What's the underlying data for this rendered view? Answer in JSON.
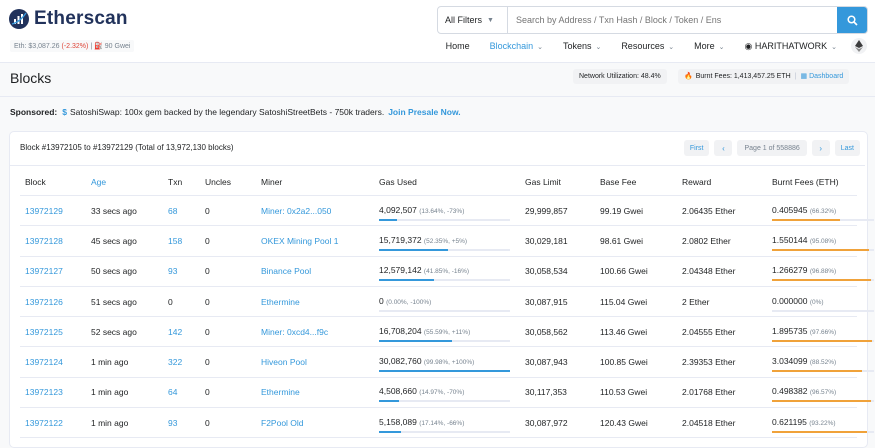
{
  "header": {
    "logo_text": "Etherscan",
    "price_label": "Eth:",
    "price_value": "$3,087.26",
    "price_change": "(-2.32%)",
    "gas_separator": "|",
    "gas_icon": "gas-pump-icon",
    "gas_value": "90 Gwei",
    "search": {
      "filter_label": "All Filters",
      "placeholder": "Search by Address / Txn Hash / Block / Token / Ens",
      "button_icon": "search-icon"
    },
    "nav": {
      "home": "Home",
      "blockchain": "Blockchain",
      "tokens": "Tokens",
      "resources": "Resources",
      "more": "More",
      "user": "HARITHATWORK",
      "network_icon": "ethereum-icon"
    }
  },
  "page": {
    "title": "Blocks",
    "network_utilization": "Network Utilization: 48.4%",
    "burnt_fees": "Burnt Fees: 1,413,457.25 ETH",
    "dashboard": "Dashboard"
  },
  "sponsored": {
    "label": "Sponsored:",
    "name": "SatoshiSwap",
    "text": ": 100x gem backed by the legendary SatoshiStreetBets - 750k traders.",
    "link": "Join Presale Now."
  },
  "card": {
    "summary": "Block #13972105 to #13972129 (Total of 13,972,130 blocks)",
    "pager": {
      "first": "First",
      "prev": "‹",
      "current": "Page 1 of 558886",
      "next": "›",
      "last": "Last"
    }
  },
  "table": {
    "headers": {
      "block": "Block",
      "age": "Age",
      "txn": "Txn",
      "uncles": "Uncles",
      "miner": "Miner",
      "gas_used": "Gas Used",
      "gas_limit": "Gas Limit",
      "base_fee": "Base Fee",
      "reward": "Reward",
      "burnt_fees": "Burnt Fees (ETH)"
    },
    "rows": [
      {
        "block": "13972129",
        "age": "33 secs ago",
        "txn": "68",
        "uncles": "0",
        "miner": "Miner: 0x2a2...050",
        "gas_used": "4,092,507",
        "gas_pct": "(13.64%, -73%)",
        "gas_fill": 0.1364,
        "gas_limit": "29,999,857",
        "base_fee": "99.19 Gwei",
        "reward": "2.06435 Ether",
        "burnt": "0.405945",
        "burnt_pct": "(66.32%)",
        "burnt_fill": 0.6632
      },
      {
        "block": "13972128",
        "age": "45 secs ago",
        "txn": "158",
        "uncles": "0",
        "miner": "OKEX Mining Pool 1",
        "gas_used": "15,719,372",
        "gas_pct": "(52.35%, +5%)",
        "gas_fill": 0.5235,
        "gas_limit": "30,029,181",
        "base_fee": "98.61 Gwei",
        "reward": "2.0802 Ether",
        "burnt": "1.550144",
        "burnt_pct": "(95.08%)",
        "burnt_fill": 0.9508
      },
      {
        "block": "13972127",
        "age": "50 secs ago",
        "txn": "93",
        "uncles": "0",
        "miner": "Binance Pool",
        "gas_used": "12,579,142",
        "gas_pct": "(41.85%, -16%)",
        "gas_fill": 0.4185,
        "gas_limit": "30,058,534",
        "base_fee": "100.66 Gwei",
        "reward": "2.04348 Ether",
        "burnt": "1.266279",
        "burnt_pct": "(96.88%)",
        "burnt_fill": 0.9688
      },
      {
        "block": "13972126",
        "age": "51 secs ago",
        "txn": "0",
        "uncles": "0",
        "miner": "Ethermine",
        "gas_used": "0",
        "gas_pct": "(0.00%, -100%)",
        "gas_fill": 0,
        "gas_limit": "30,087,915",
        "base_fee": "115.04 Gwei",
        "reward": "2 Ether",
        "burnt": "0.000000",
        "burnt_pct": "(0%)",
        "burnt_fill": 0
      },
      {
        "block": "13972125",
        "age": "52 secs ago",
        "txn": "142",
        "uncles": "0",
        "miner": "Miner: 0xcd4...f9c",
        "gas_used": "16,708,204",
        "gas_pct": "(55.59%, +11%)",
        "gas_fill": 0.5559,
        "gas_limit": "30,058,562",
        "base_fee": "113.46 Gwei",
        "reward": "2.04555 Ether",
        "burnt": "1.895735",
        "burnt_pct": "(97.66%)",
        "burnt_fill": 0.9766
      },
      {
        "block": "13972124",
        "age": "1 min ago",
        "txn": "322",
        "uncles": "0",
        "miner": "Hiveon Pool",
        "gas_used": "30,082,760",
        "gas_pct": "(99.98%, +100%)",
        "gas_fill": 0.9998,
        "gas_limit": "30,087,943",
        "base_fee": "100.85 Gwei",
        "reward": "2.39353 Ether",
        "burnt": "3.034099",
        "burnt_pct": "(88.52%)",
        "burnt_fill": 0.8852
      },
      {
        "block": "13972123",
        "age": "1 min ago",
        "txn": "64",
        "uncles": "0",
        "miner": "Ethermine",
        "gas_used": "4,508,660",
        "gas_pct": "(14.97%, -70%)",
        "gas_fill": 0.1497,
        "gas_limit": "30,117,353",
        "base_fee": "110.53 Gwei",
        "reward": "2.01768 Ether",
        "burnt": "0.498382",
        "burnt_pct": "(96.57%)",
        "burnt_fill": 0.9657
      },
      {
        "block": "13972122",
        "age": "1 min ago",
        "txn": "93",
        "uncles": "0",
        "miner": "F2Pool Old",
        "gas_used": "5,158,089",
        "gas_pct": "(17.14%, -66%)",
        "gas_fill": 0.1714,
        "gas_limit": "30,087,972",
        "base_fee": "120.43 Gwei",
        "reward": "2.04518 Ether",
        "burnt": "0.621195",
        "burnt_pct": "(93.22%)",
        "burnt_fill": 0.9322
      }
    ]
  },
  "colors": {
    "link": "#3498db",
    "negative": "#de4437",
    "burnt_bar": "#f0a23a",
    "gas_bar": "#3498db"
  }
}
